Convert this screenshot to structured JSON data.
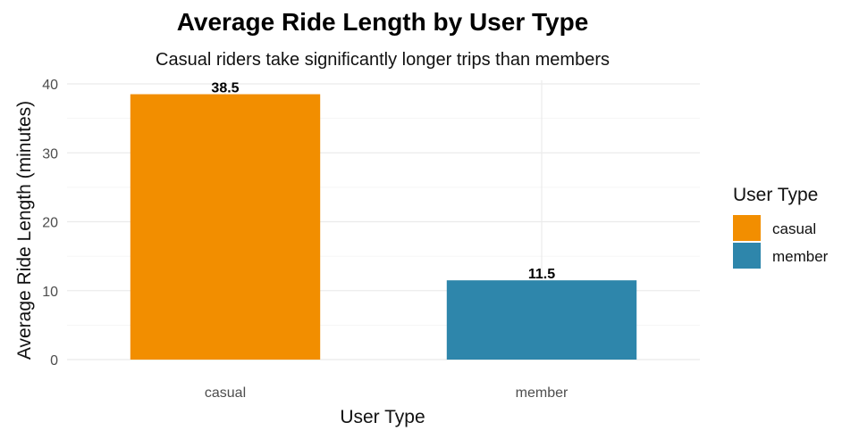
{
  "chart_data": {
    "type": "bar",
    "title": "Average Ride Length by User Type",
    "subtitle": "Casual riders take significantly longer trips than members",
    "xlabel": "User Type",
    "ylabel": "Average Ride Length (minutes)",
    "categories": [
      "casual",
      "member"
    ],
    "values": [
      38.5,
      11.5
    ],
    "data_labels": [
      "38.5",
      "11.5"
    ],
    "colors": [
      "#F28E00",
      "#2E86AB"
    ],
    "ylim": [
      0,
      40
    ],
    "yticks": [
      0,
      10,
      20,
      30,
      40
    ],
    "grid": true,
    "legend": {
      "title": "User Type",
      "position": "right",
      "entries": [
        "casual",
        "member"
      ]
    }
  }
}
